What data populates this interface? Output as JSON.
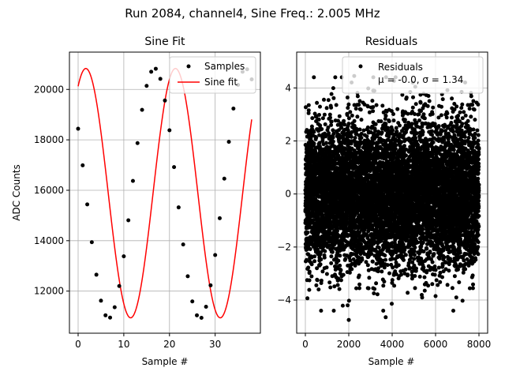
{
  "figure": {
    "suptitle": "Run 2084, channel4, Sine Freq.: 2.005 MHz"
  },
  "colors": {
    "samples": "#000000",
    "fit": "#ff0000",
    "grid": "#b0b0b0"
  },
  "chart_data": [
    {
      "type": "line",
      "title": "Sine Fit",
      "xlabel": "Sample #",
      "ylabel": "ADC Counts",
      "xlim": [
        -1.9,
        39.9
      ],
      "ylim": [
        10330,
        21480
      ],
      "grid": true,
      "legend_placement": "top-right",
      "xticks": [
        0,
        10,
        20,
        30
      ],
      "yticks": [
        12000,
        14000,
        16000,
        18000,
        20000
      ],
      "xtick_labels": [
        "0",
        "10",
        "20",
        "30"
      ],
      "ytick_labels": [
        "12000",
        "14000",
        "16000",
        "18000",
        "20000"
      ],
      "series": [
        {
          "name": "Samples",
          "style": "points",
          "x": [
            0,
            1,
            2,
            3,
            4,
            5,
            6,
            7,
            8,
            9,
            10,
            11,
            12,
            13,
            14,
            15,
            16,
            17,
            18,
            19,
            20,
            21,
            22,
            23,
            24,
            25,
            26,
            27,
            28,
            29,
            30,
            31,
            32,
            33,
            34,
            35,
            36,
            37,
            38
          ],
          "y": [
            18440,
            16990,
            15440,
            13940,
            12650,
            11620,
            11040,
            10950,
            11360,
            12200,
            13380,
            14810,
            16370,
            17870,
            19190,
            20140,
            20700,
            20820,
            20420,
            19560,
            18380,
            16920,
            15320,
            13850,
            12590,
            11590,
            11040,
            10940,
            11380,
            12230,
            13430,
            14890,
            16460,
            17920,
            19240,
            20180,
            20700,
            20800,
            20400
          ]
        },
        {
          "name": "Sine fit",
          "style": "line",
          "model": {
            "offset": 15885,
            "amplitude": 4945,
            "period": 19.62,
            "phase": 1.03
          }
        }
      ]
    },
    {
      "type": "scatter",
      "title": "Residuals",
      "xlabel": "Sample #",
      "ylabel": "",
      "xlim": [
        -400,
        8400
      ],
      "ylim": [
        -5.25,
        5.35
      ],
      "grid": true,
      "legend_placement": "top-right",
      "xticks": [
        0,
        2000,
        4000,
        6000,
        8000
      ],
      "yticks": [
        -4,
        -2,
        0,
        2,
        4
      ],
      "xtick_labels": [
        "0",
        "2000",
        "4000",
        "6000",
        "8000"
      ],
      "ytick_labels": [
        "−4",
        "−2",
        "0",
        "2",
        "4"
      ],
      "series": [
        {
          "name": "Residuals",
          "legend_line2": "μ = -0.0, σ = 1.34",
          "n_samples": 8000,
          "mean": 0.0,
          "std": 1.34,
          "extremes": [
            [
              2000,
              -4.75
            ],
            [
              1950,
              -4.2
            ],
            [
              3700,
              -4.65
            ],
            [
              2250,
              4.45
            ],
            [
              4950,
              4.2
            ],
            [
              6000,
              -3.85
            ],
            [
              7200,
              3.85
            ]
          ]
        }
      ]
    }
  ]
}
